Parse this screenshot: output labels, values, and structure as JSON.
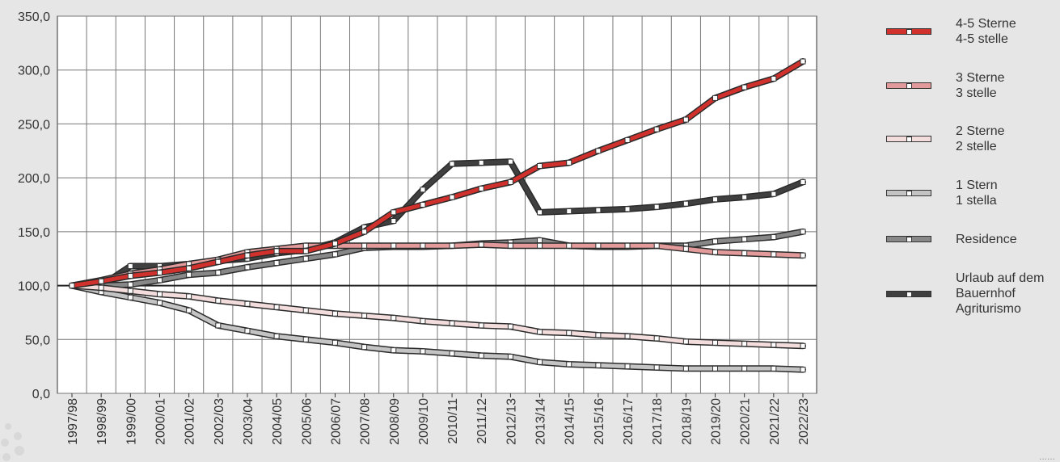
{
  "chart_data": {
    "type": "line",
    "categories": [
      "1997/98",
      "1998/99",
      "1999/00",
      "2000/01",
      "2001/02",
      "2002/03",
      "2003/04",
      "2004/05",
      "2005/06",
      "2006/07",
      "2007/08",
      "2008/09",
      "2009/10",
      "2010/11",
      "2011/12",
      "2012/13",
      "2013/14",
      "2014/15",
      "2015/16",
      "2016/17",
      "2017/18",
      "2018/19",
      "2019/20",
      "2020/21",
      "2021/22",
      "2022/23"
    ],
    "yticks": [
      "0,0",
      "50,0",
      "100,0",
      "150,0",
      "200,0",
      "250,0",
      "300,0",
      "350,0"
    ],
    "ylim": [
      0,
      350
    ],
    "baseline": 100,
    "grid": true,
    "series": [
      {
        "lines": [
          "4-5 Sterne",
          "4-5 stelle"
        ],
        "color": "#d0312d",
        "values": [
          100,
          104,
          109,
          112,
          116,
          122,
          128,
          132,
          132,
          139,
          150,
          168,
          175,
          182,
          190,
          196,
          211,
          214,
          225,
          235,
          245,
          254,
          274,
          284,
          292,
          308
        ]
      },
      {
        "lines": [
          "3 Sterne",
          "3 stelle"
        ],
        "color": "#e29a9a",
        "values": [
          100,
          105,
          111,
          115,
          120,
          124,
          131,
          134,
          137,
          137,
          137,
          137,
          137,
          137,
          138,
          137,
          137,
          137,
          137,
          137,
          137,
          134,
          131,
          130,
          129,
          128
        ]
      },
      {
        "lines": [
          "2 Sterne",
          "2 stelle"
        ],
        "color": "#f2dcdc",
        "values": [
          100,
          98,
          95,
          92,
          90,
          86,
          83,
          80,
          77,
          74,
          72,
          70,
          67,
          65,
          63,
          62,
          57,
          56,
          54,
          53,
          51,
          48,
          47,
          46,
          45,
          44
        ]
      },
      {
        "lines": [
          "1 Stern",
          "1 stella"
        ],
        "color": "#c4c4c4",
        "values": [
          100,
          94,
          89,
          84,
          77,
          63,
          58,
          53,
          50,
          47,
          43,
          40,
          39,
          37,
          35,
          34,
          29,
          27,
          26,
          25,
          24,
          23,
          23,
          23,
          23,
          22
        ]
      },
      {
        "lines": [
          "Residence"
        ],
        "color": "#888888",
        "values": [
          100,
          100,
          101,
          105,
          110,
          112,
          117,
          121,
          125,
          129,
          135,
          136,
          136,
          137,
          139,
          140,
          142,
          137,
          136,
          136,
          137,
          137,
          141,
          143,
          145,
          150
        ]
      },
      {
        "lines": [
          "Urlaub auf dem",
          "Bauernhof",
          "Agriturismo"
        ],
        "color": "#404040",
        "values": [
          100,
          100,
          118,
          118,
          120,
          123,
          125,
          130,
          133,
          140,
          154,
          160,
          189,
          213,
          214,
          215,
          168,
          169,
          170,
          171,
          173,
          176,
          180,
          182,
          185,
          196
        ]
      }
    ]
  },
  "footer": {
    "dots": "......"
  }
}
